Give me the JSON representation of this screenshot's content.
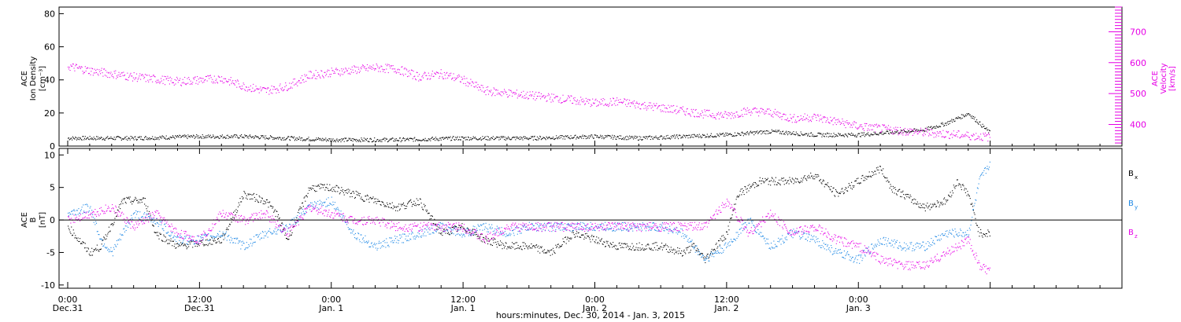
{
  "chart_data": [
    {
      "type": "scatter",
      "panel": "top",
      "ylabel_lines": [
        "ACE",
        "Ion Density",
        "[cm⁻³]"
      ],
      "y2label_lines": [
        "ACE",
        "Velocity",
        "[km/s]"
      ],
      "ylim": [
        0,
        84
      ],
      "yticks": [
        "0",
        "20",
        "40",
        "60",
        "80"
      ],
      "y2lim": [
        330,
        780
      ],
      "y2ticks": [
        "400",
        "500",
        "600",
        "700"
      ],
      "grid": false,
      "series": [
        {
          "color": "#000000",
          "axis": "left",
          "values_at_hours": [
            [
              0,
              5
            ],
            [
              6,
              5
            ],
            [
              12,
              6
            ],
            [
              16,
              6
            ],
            [
              20,
              5
            ],
            [
              24,
              4
            ],
            [
              30,
              4
            ],
            [
              36,
              5
            ],
            [
              42,
              5
            ],
            [
              48,
              6
            ],
            [
              52,
              5
            ],
            [
              60,
              7
            ],
            [
              64,
              9
            ],
            [
              68,
              7
            ],
            [
              72,
              7
            ],
            [
              78,
              10
            ],
            [
              80,
              14
            ],
            [
              82,
              20
            ],
            [
              84,
              8
            ]
          ]
        },
        {
          "color": "#e600e6",
          "axis": "right",
          "values_at_hours": [
            [
              0,
              590
            ],
            [
              2,
              575
            ],
            [
              6,
              555
            ],
            [
              10,
              540
            ],
            [
              14,
              550
            ],
            [
              16,
              525
            ],
            [
              18,
              510
            ],
            [
              20,
              525
            ],
            [
              22,
              560
            ],
            [
              24,
              570
            ],
            [
              28,
              585
            ],
            [
              30,
              580
            ],
            [
              32,
              555
            ],
            [
              34,
              565
            ],
            [
              36,
              545
            ],
            [
              38,
              510
            ],
            [
              42,
              495
            ],
            [
              46,
              480
            ],
            [
              48,
              470
            ],
            [
              50,
              475
            ],
            [
              54,
              455
            ],
            [
              58,
              435
            ],
            [
              60,
              430
            ],
            [
              62,
              445
            ],
            [
              64,
              440
            ],
            [
              66,
              420
            ],
            [
              68,
              425
            ],
            [
              70,
              410
            ],
            [
              72,
              395
            ],
            [
              76,
              380
            ],
            [
              80,
              370
            ],
            [
              82,
              365
            ],
            [
              84,
              360
            ]
          ]
        }
      ]
    },
    {
      "type": "scatter",
      "panel": "bottom",
      "ylabel_lines": [
        "ACE",
        "B",
        "[nT]"
      ],
      "ylim": [
        -10.5,
        11
      ],
      "yticks": [
        "-10",
        "-5",
        "0",
        "5",
        "10"
      ],
      "zero_line": true,
      "grid": false,
      "legend_position": "right",
      "series": [
        {
          "name": "B",
          "subscript": "x",
          "color": "#000000",
          "values_at_hours": [
            [
              0,
              -1
            ],
            [
              2,
              -5
            ],
            [
              3,
              -4
            ],
            [
              5,
              3
            ],
            [
              7,
              3
            ],
            [
              8,
              -2
            ],
            [
              10,
              -4
            ],
            [
              14,
              -3
            ],
            [
              16,
              4
            ],
            [
              18,
              3
            ],
            [
              19,
              1
            ],
            [
              20,
              -3
            ],
            [
              22,
              5
            ],
            [
              24,
              5
            ],
            [
              26,
              4
            ],
            [
              28,
              3
            ],
            [
              30,
              2
            ],
            [
              32,
              3
            ],
            [
              34,
              -2
            ],
            [
              36,
              -1
            ],
            [
              38,
              -3
            ],
            [
              40,
              -4
            ],
            [
              42,
              -4
            ],
            [
              44,
              -5
            ],
            [
              46,
              -2
            ],
            [
              48,
              -3
            ],
            [
              50,
              -4
            ],
            [
              52,
              -4
            ],
            [
              54,
              -4
            ],
            [
              56,
              -5
            ],
            [
              57,
              -4
            ],
            [
              58,
              -6
            ],
            [
              60,
              -2
            ],
            [
              61,
              4
            ],
            [
              63,
              6
            ],
            [
              66,
              6
            ],
            [
              68,
              7
            ],
            [
              70,
              4
            ],
            [
              72,
              6
            ],
            [
              74,
              8
            ],
            [
              75,
              5
            ],
            [
              76,
              4
            ],
            [
              78,
              2
            ],
            [
              80,
              3
            ],
            [
              81,
              6
            ],
            [
              82,
              4
            ],
            [
              83,
              -2
            ],
            [
              84,
              -2
            ]
          ]
        },
        {
          "name": "B",
          "subscript": "y",
          "color": "#1e88e5",
          "values_at_hours": [
            [
              0,
              1
            ],
            [
              2,
              2
            ],
            [
              3,
              -3
            ],
            [
              4,
              -5
            ],
            [
              6,
              1
            ],
            [
              8,
              0
            ],
            [
              10,
              -3
            ],
            [
              12,
              -3
            ],
            [
              14,
              -2
            ],
            [
              16,
              -4
            ],
            [
              18,
              -2
            ],
            [
              20,
              -1
            ],
            [
              22,
              2
            ],
            [
              24,
              3
            ],
            [
              26,
              -2
            ],
            [
              28,
              -4
            ],
            [
              30,
              -3
            ],
            [
              32,
              -2
            ],
            [
              34,
              -1
            ],
            [
              36,
              -2
            ],
            [
              38,
              -1
            ],
            [
              40,
              -2
            ],
            [
              42,
              -1
            ],
            [
              44,
              -1
            ],
            [
              46,
              -1
            ],
            [
              48,
              -1
            ],
            [
              50,
              -1
            ],
            [
              52,
              -1
            ],
            [
              54,
              -1
            ],
            [
              56,
              -2
            ],
            [
              57,
              -4
            ],
            [
              58,
              -6
            ],
            [
              60,
              -4
            ],
            [
              62,
              0
            ],
            [
              64,
              -4
            ],
            [
              66,
              -2
            ],
            [
              68,
              -3
            ],
            [
              70,
              -5
            ],
            [
              72,
              -6
            ],
            [
              74,
              -3
            ],
            [
              76,
              -4
            ],
            [
              78,
              -4
            ],
            [
              80,
              -2
            ],
            [
              82,
              -2
            ],
            [
              83,
              6
            ],
            [
              84,
              9
            ]
          ]
        },
        {
          "name": "B",
          "subscript": "z",
          "color": "#e600e6",
          "values_at_hours": [
            [
              0,
              0
            ],
            [
              2,
              1
            ],
            [
              4,
              2
            ],
            [
              6,
              -1
            ],
            [
              8,
              1
            ],
            [
              10,
              -2
            ],
            [
              12,
              -3
            ],
            [
              14,
              1
            ],
            [
              16,
              0
            ],
            [
              18,
              1
            ],
            [
              20,
              -2
            ],
            [
              22,
              2
            ],
            [
              24,
              1
            ],
            [
              26,
              0
            ],
            [
              28,
              0
            ],
            [
              30,
              -1
            ],
            [
              32,
              -1
            ],
            [
              34,
              -1
            ],
            [
              36,
              -1
            ],
            [
              38,
              -3
            ],
            [
              40,
              -1
            ],
            [
              42,
              -1
            ],
            [
              44,
              -1
            ],
            [
              46,
              -1
            ],
            [
              48,
              -1
            ],
            [
              50,
              -1
            ],
            [
              52,
              -1
            ],
            [
              54,
              -1
            ],
            [
              56,
              -1
            ],
            [
              58,
              -1
            ],
            [
              60,
              3
            ],
            [
              62,
              -2
            ],
            [
              64,
              1
            ],
            [
              66,
              -2
            ],
            [
              68,
              -1
            ],
            [
              70,
              -3
            ],
            [
              72,
              -4
            ],
            [
              74,
              -6
            ],
            [
              76,
              -7
            ],
            [
              78,
              -7
            ],
            [
              80,
              -5
            ],
            [
              82,
              -3
            ],
            [
              83,
              -7
            ],
            [
              84,
              -8
            ]
          ]
        }
      ]
    }
  ],
  "x_axis": {
    "ticks": [
      {
        "time": "0:00",
        "date": "Dec.31"
      },
      {
        "time": "12:00",
        "date": "Dec.31"
      },
      {
        "time": "0:00",
        "date": "Jan. 1"
      },
      {
        "time": "12:00",
        "date": "Jan. 1"
      },
      {
        "time": "0:00",
        "date": "Jan. 2"
      },
      {
        "time": "12:00",
        "date": "Jan. 2"
      },
      {
        "time": "0:00",
        "date": "Jan. 3"
      }
    ],
    "xlabel": "hours:minutes, Dec. 30, 2014 - Jan.  3, 2015"
  }
}
